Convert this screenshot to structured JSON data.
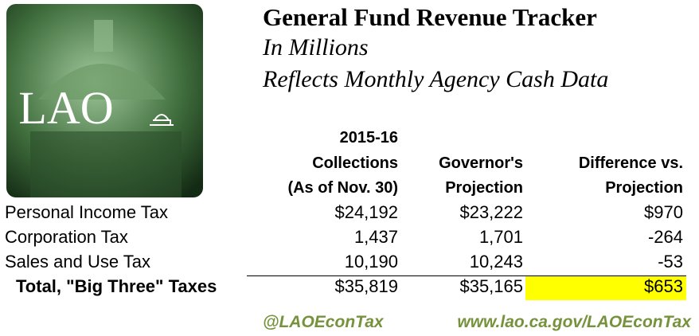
{
  "header": {
    "title": "General Fund Revenue Tracker",
    "subtitle": [
      "In Millions",
      "Reflects Monthly Agency Cash Data"
    ],
    "logo": "LAO"
  },
  "table": {
    "columns": [
      [
        "2015-16",
        "Collections",
        "(As of Nov. 30)"
      ],
      [
        "Governor's",
        "Projection"
      ],
      [
        "Difference vs.",
        "Projection"
      ]
    ],
    "rows": [
      [
        "Personal Income Tax",
        "$24,192",
        "$23,222",
        "$970"
      ],
      [
        "Corporation Tax",
        "1,437",
        "1,701",
        "-264"
      ],
      [
        "Sales and Use Tax",
        "10,190",
        "10,243",
        "-53"
      ],
      [
        "Total, \"Big Three\" Taxes",
        "$35,819",
        "$35,165",
        "$653"
      ]
    ]
  },
  "footer": {
    "twitter": "@LAOEconTax",
    "url": "www.lao.ca.gov/LAOEconTax"
  }
}
